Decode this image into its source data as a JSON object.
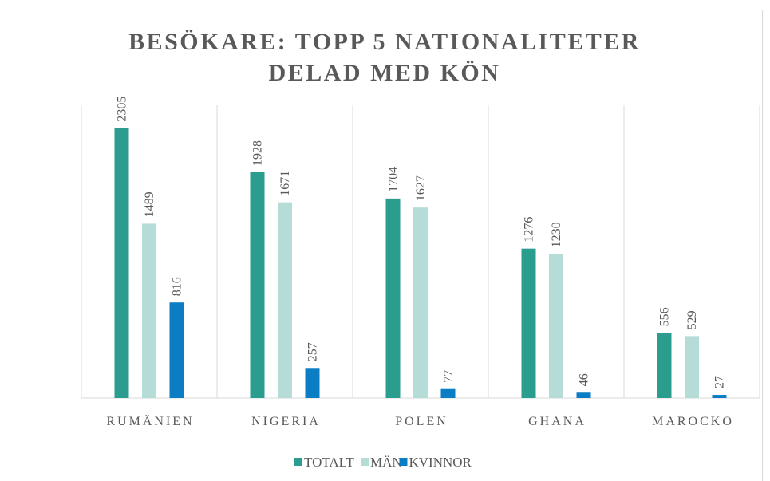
{
  "chart_data": {
    "type": "bar",
    "title": [
      "BESÖKARE: TOPP 5 NATIONALITETER",
      "DELAD MED KÖN"
    ],
    "categories": [
      "RUMÄNIEN",
      "NIGERIA",
      "POLEN",
      "GHANA",
      "MAROCKO"
    ],
    "series": [
      {
        "name": "TOTALT",
        "color": "#2a9d8f",
        "values": [
          2305,
          1928,
          1704,
          1276,
          556
        ]
      },
      {
        "name": "MÄN",
        "color": "#b5dcd6",
        "values": [
          1489,
          1671,
          1627,
          1230,
          529
        ]
      },
      {
        "name": "KVINNOR",
        "color": "#0b7dc4",
        "values": [
          816,
          257,
          77,
          46,
          27
        ]
      }
    ],
    "ylim": [
      0,
      2500
    ],
    "legend": "bottom"
  }
}
